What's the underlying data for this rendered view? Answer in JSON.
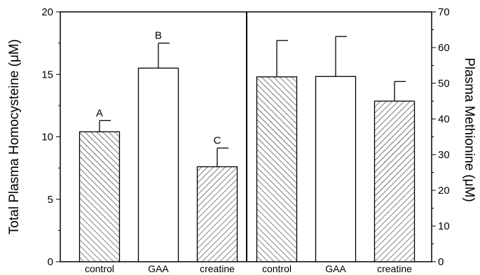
{
  "chart_data": [
    {
      "type": "bar",
      "ylabel": "Total Plasma Homocysteine (μM)",
      "ylim": [
        0,
        20
      ],
      "yticks": [
        0,
        5,
        10,
        15,
        20
      ],
      "categories": [
        "control",
        "GAA",
        "creatine"
      ],
      "values": [
        10.4,
        15.5,
        7.6
      ],
      "errors": [
        0.9,
        2.0,
        1.5
      ],
      "letters": [
        "A",
        "B",
        "C"
      ],
      "patterns": [
        "backslash",
        "none",
        "slash"
      ]
    },
    {
      "type": "bar",
      "ylabel": "Plasma Methionine (μM)",
      "ylim": [
        0,
        70
      ],
      "yticks": [
        0,
        10,
        20,
        30,
        40,
        50,
        60,
        70
      ],
      "categories": [
        "control",
        "GAA",
        "creatine"
      ],
      "values": [
        51.8,
        51.9,
        45.0
      ],
      "errors": [
        10.2,
        11.2,
        5.5
      ],
      "patterns": [
        "backslash",
        "none",
        "slash"
      ]
    }
  ]
}
